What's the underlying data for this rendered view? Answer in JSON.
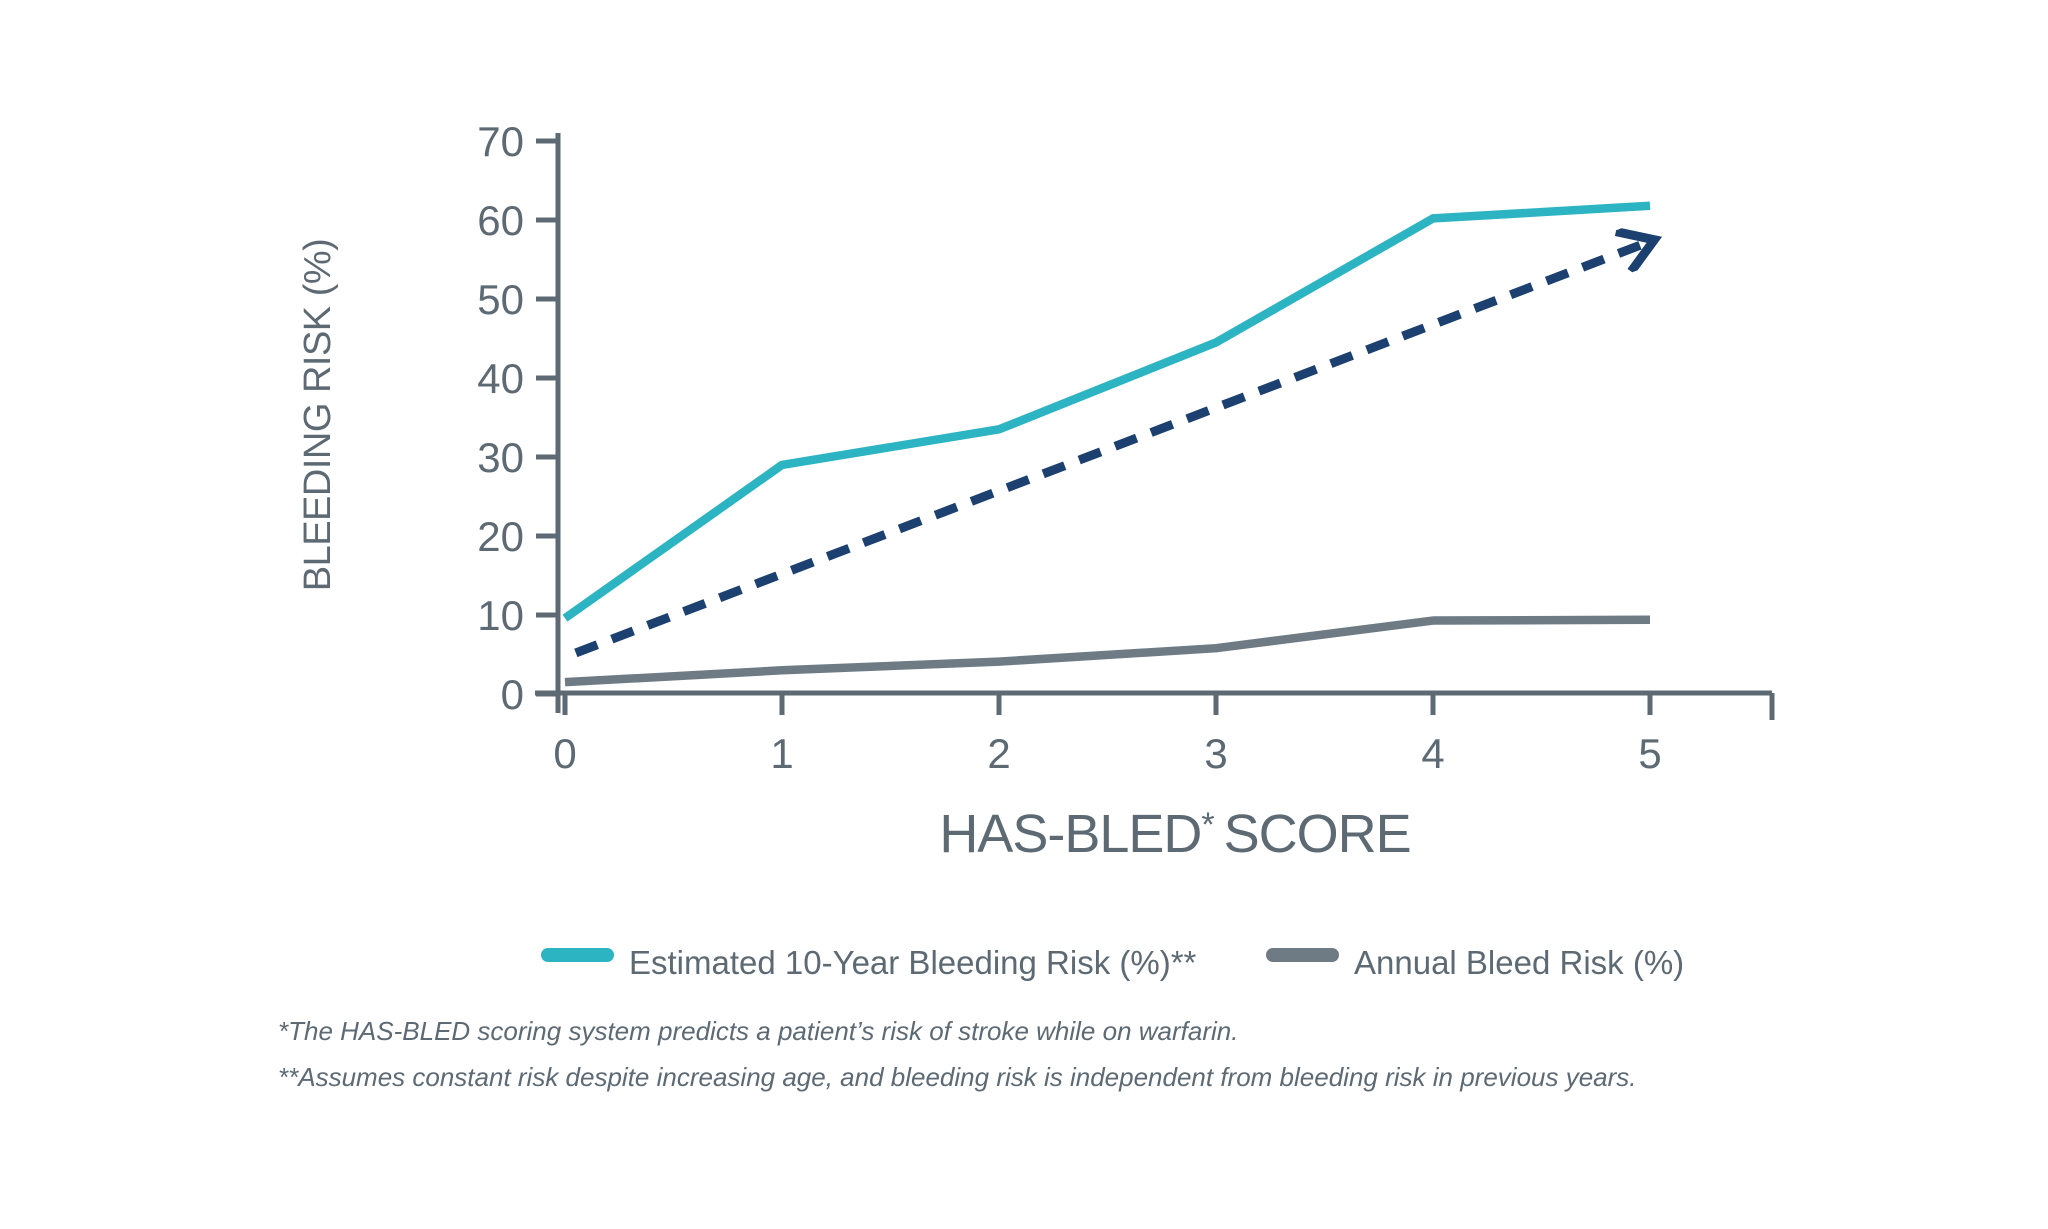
{
  "page": {
    "background": "#ffffff"
  },
  "chart_data": {
    "type": "line",
    "title": "",
    "xlabel": {
      "main": "HAS-BLED",
      "superscript": "*",
      "rest": "SCORE"
    },
    "ylabel": "BLEEDING RISK (%)",
    "categories": [
      0,
      1,
      2,
      3,
      4,
      5
    ],
    "x_ticks": [
      "0",
      "1",
      "2",
      "3",
      "4",
      "5"
    ],
    "y_ticks": [
      "0",
      "10",
      "20",
      "30",
      "40",
      "50",
      "60",
      "70"
    ],
    "xlim": [
      0,
      5.55
    ],
    "ylim": [
      0,
      70
    ],
    "grid": false,
    "legend_position": "bottom",
    "axis_color": "#5d6a74",
    "text_color": "#5d6a74",
    "series": [
      {
        "name": "Estimated 10-Year Bleeding Risk (%)**",
        "color": "#2cb4c3",
        "line_style": "solid",
        "values": [
          9.6,
          29.0,
          33.5,
          44.5,
          60.2,
          61.8
        ]
      },
      {
        "name": "Annual Bleed Risk (%)",
        "color": "#6e7b85",
        "line_style": "solid",
        "values": [
          1.5,
          3.0,
          4.1,
          5.8,
          9.3,
          9.4
        ]
      }
    ],
    "trend_arrow": {
      "description": "dashed navy arrow emphasizing rising risk, not shown in legend",
      "color": "#1c406f",
      "line_style": "dashed",
      "from": {
        "x": 0.05,
        "y": 5.2
      },
      "to": {
        "x": 5.02,
        "y": 57.5
      }
    },
    "footnotes": [
      "*The HAS-BLED scoring system predicts a patient’s risk of stroke while on warfarin.",
      "**Assumes constant risk despite increasing age, and bleeding risk is independent from bleeding risk in previous years."
    ]
  }
}
